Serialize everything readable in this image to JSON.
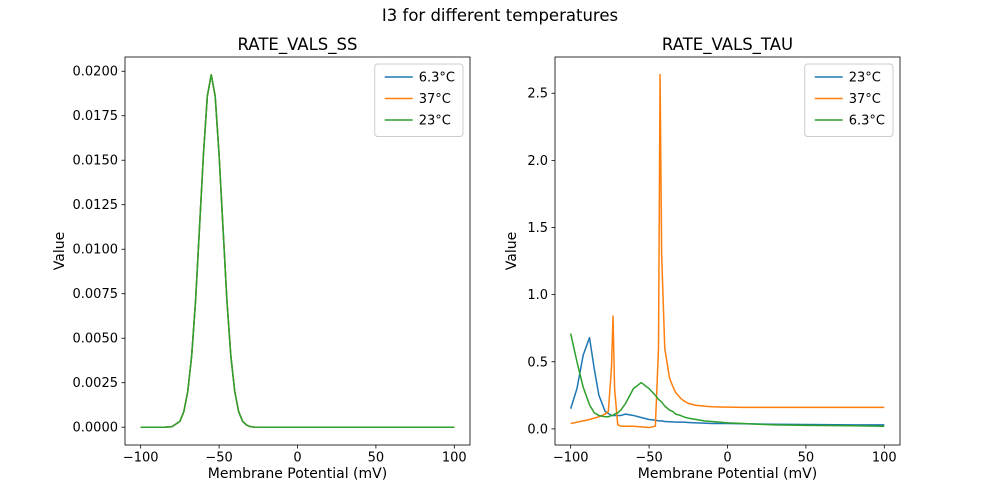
{
  "figure_title": "I3 for different temperatures",
  "palette": {
    "blue": "#1f77b4",
    "orange": "#ff7f0e",
    "green": "#2ca02c"
  },
  "chart_data": [
    {
      "type": "line",
      "title": "RATE_VALS_SS",
      "xlabel": "Membrane Potential (mV)",
      "ylabel": "Value",
      "xlim": [
        -110,
        110
      ],
      "ylim": [
        -0.001,
        0.0208
      ],
      "grid": false,
      "legend_position": "upper right",
      "xticks": [
        -100,
        -50,
        0,
        50,
        100
      ],
      "xtick_labels": [
        "−100",
        "−50",
        "0",
        "50",
        "100"
      ],
      "yticks": [
        0,
        0.0025,
        0.005,
        0.0075,
        0.01,
        0.0125,
        0.015,
        0.0175,
        0.02
      ],
      "ytick_labels": [
        "0.0000",
        "0.0025",
        "0.0050",
        "0.0075",
        "0.0100",
        "0.0125",
        "0.0150",
        "0.0175",
        "0.0200"
      ],
      "x": [
        -100,
        -90,
        -85,
        -80,
        -75,
        -72.5,
        -70,
        -67.5,
        -65,
        -62.5,
        -60,
        -57.5,
        -55,
        -52.5,
        -50,
        -47.5,
        -45,
        -42.5,
        -40,
        -37.5,
        -35,
        -32.5,
        -30,
        -27.5,
        -25,
        -20,
        -15,
        -10,
        0,
        20,
        40,
        60,
        80,
        100
      ],
      "series": [
        {
          "name": "6.3°C",
          "color": "#1f77b4",
          "values": [
            0,
            0,
            0,
            3e-05,
            0.00033,
            0.00087,
            0.002,
            0.004,
            0.0071,
            0.0112,
            0.0153,
            0.0186,
            0.0198,
            0.0186,
            0.0153,
            0.0112,
            0.0071,
            0.004,
            0.002,
            0.00087,
            0.00033,
            0.00012,
            3e-05,
            1e-05,
            0,
            0,
            0,
            0,
            0,
            0,
            0,
            0,
            0,
            0
          ]
        },
        {
          "name": "37°C",
          "color": "#ff7f0e",
          "values": [
            0,
            0,
            0,
            3e-05,
            0.00033,
            0.00087,
            0.002,
            0.004,
            0.0071,
            0.0112,
            0.0153,
            0.0186,
            0.0198,
            0.0186,
            0.0153,
            0.0112,
            0.0071,
            0.004,
            0.002,
            0.00087,
            0.00033,
            0.00012,
            3e-05,
            1e-05,
            0,
            0,
            0,
            0,
            0,
            0,
            0,
            0,
            0,
            0
          ]
        },
        {
          "name": "23°C",
          "color": "#2ca02c",
          "values": [
            0,
            0,
            0,
            3e-05,
            0.00033,
            0.00087,
            0.002,
            0.004,
            0.0071,
            0.0112,
            0.0153,
            0.0186,
            0.0198,
            0.0186,
            0.0153,
            0.0112,
            0.0071,
            0.004,
            0.002,
            0.00087,
            0.00033,
            0.00012,
            3e-05,
            1e-05,
            0,
            0,
            0,
            0,
            0,
            0,
            0,
            0,
            0,
            0
          ]
        }
      ]
    },
    {
      "type": "line",
      "title": "RATE_VALS_TAU",
      "xlabel": "Membrane Potential (mV)",
      "ylabel": "Value",
      "xlim": [
        -110,
        110
      ],
      "ylim": [
        -0.12,
        2.77
      ],
      "grid": false,
      "legend_position": "upper right",
      "xticks": [
        -100,
        -50,
        0,
        50,
        100
      ],
      "xtick_labels": [
        "−100",
        "−50",
        "0",
        "50",
        "100"
      ],
      "yticks": [
        0,
        0.5,
        1.0,
        1.5,
        2.0,
        2.5
      ],
      "ytick_labels": [
        "0.0",
        "0.5",
        "1.0",
        "1.5",
        "2.0",
        "2.5"
      ],
      "x": [
        -100,
        -96,
        -92,
        -88,
        -85,
        -82,
        -78,
        -76,
        -74,
        -73,
        -72,
        -70,
        -68,
        -65,
        -60,
        -55,
        -50,
        -46,
        -44,
        -43,
        -42,
        -40,
        -37,
        -35,
        -33,
        -30,
        -28,
        -25,
        -20,
        -15,
        -10,
        -5,
        0,
        10,
        20,
        30,
        40,
        50,
        60,
        70,
        80,
        90,
        100
      ],
      "series": [
        {
          "name": "23°C",
          "color": "#1f77b4",
          "values": [
            0.15,
            0.3,
            0.55,
            0.68,
            0.45,
            0.25,
            0.13,
            0.115,
            0.1,
            0.1,
            0.1,
            0.1,
            0.1,
            0.11,
            0.1,
            0.085,
            0.07,
            0.065,
            0.06,
            0.06,
            0.06,
            0.055,
            0.053,
            0.052,
            0.05,
            0.05,
            0.05,
            0.048,
            0.045,
            0.043,
            0.04,
            0.04,
            0.04,
            0.038,
            0.036,
            0.035,
            0.034,
            0.033,
            0.032,
            0.031,
            0.03,
            0.03,
            0.03
          ]
        },
        {
          "name": "37°C",
          "color": "#ff7f0e",
          "values": [
            0.04,
            0.05,
            0.06,
            0.07,
            0.08,
            0.09,
            0.11,
            0.13,
            0.45,
            0.84,
            0.3,
            0.03,
            0.02,
            0.02,
            0.02,
            0.015,
            0.01,
            0.02,
            0.6,
            2.64,
            1.3,
            0.6,
            0.38,
            0.32,
            0.27,
            0.23,
            0.21,
            0.19,
            0.175,
            0.17,
            0.165,
            0.163,
            0.162,
            0.16,
            0.16,
            0.16,
            0.16,
            0.16,
            0.16,
            0.16,
            0.16,
            0.16,
            0.16
          ]
        },
        {
          "name": "6.3°C",
          "color": "#2ca02c",
          "values": [
            0.71,
            0.5,
            0.31,
            0.18,
            0.12,
            0.1,
            0.09,
            0.09,
            0.1,
            0.1,
            0.11,
            0.12,
            0.14,
            0.19,
            0.3,
            0.345,
            0.3,
            0.25,
            0.22,
            0.21,
            0.2,
            0.17,
            0.14,
            0.13,
            0.11,
            0.1,
            0.09,
            0.08,
            0.07,
            0.06,
            0.055,
            0.05,
            0.045,
            0.04,
            0.035,
            0.03,
            0.028,
            0.026,
            0.025,
            0.024,
            0.023,
            0.022,
            0.02
          ]
        }
      ]
    }
  ]
}
